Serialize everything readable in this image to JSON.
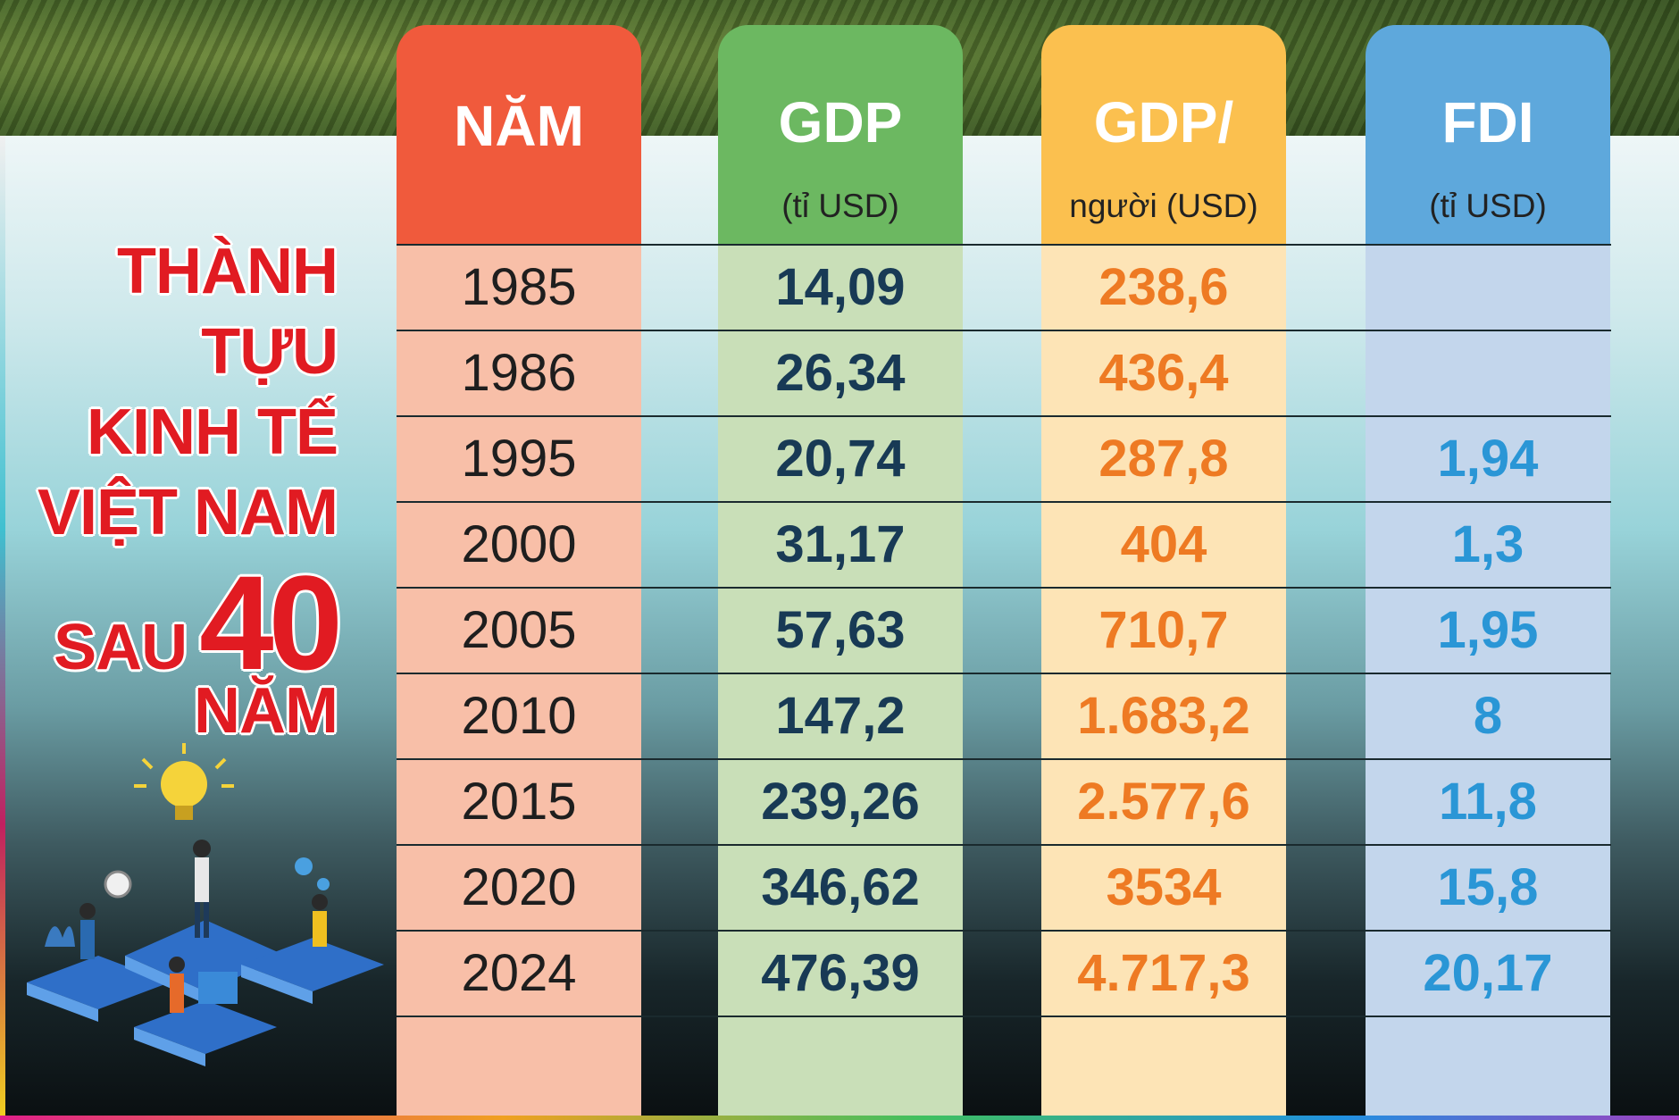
{
  "title": {
    "line1": "THÀNH",
    "line2": "TỰU",
    "line3": "KINH TẾ",
    "line4": "VIỆT NAM",
    "sau": "SAU",
    "number": "40",
    "line6": "NĂM"
  },
  "colors": {
    "year_header": "#f05a3c",
    "year_body": "#f8bfa8",
    "gdp_header": "#6cb861",
    "gdp_body": "#c9dfb8",
    "gdpp_header": "#fbc04f",
    "gdpp_body": "#fde4b6",
    "fdi_header": "#5ea8dc",
    "fdi_body": "#c3d6ec",
    "title_red": "#e11b22"
  },
  "chart_data": {
    "type": "table",
    "columns": [
      {
        "key": "year",
        "title": "NĂM",
        "subtitle": ""
      },
      {
        "key": "gdp",
        "title": "GDP",
        "subtitle": "(tỉ USD)"
      },
      {
        "key": "gdp_per_capita",
        "title": "GDP/",
        "subtitle": "người (USD)"
      },
      {
        "key": "fdi",
        "title": "FDI",
        "subtitle": "(tỉ USD)"
      }
    ],
    "rows": [
      {
        "year": "1985",
        "gdp": "14,09",
        "gdp_per_capita": "238,6",
        "fdi": ""
      },
      {
        "year": "1986",
        "gdp": "26,34",
        "gdp_per_capita": "436,4",
        "fdi": ""
      },
      {
        "year": "1995",
        "gdp": "20,74",
        "gdp_per_capita": "287,8",
        "fdi": "1,94"
      },
      {
        "year": "2000",
        "gdp": "31,17",
        "gdp_per_capita": "404",
        "fdi": "1,3"
      },
      {
        "year": "2005",
        "gdp": "57,63",
        "gdp_per_capita": "710,7",
        "fdi": "1,95"
      },
      {
        "year": "2010",
        "gdp": "147,2",
        "gdp_per_capita": "1.683,2",
        "fdi": "8"
      },
      {
        "year": "2015",
        "gdp": "239,26",
        "gdp_per_capita": "2.577,6",
        "fdi": "11,8"
      },
      {
        "year": "2020",
        "gdp": "346,62",
        "gdp_per_capita": "3534",
        "fdi": "15,8"
      },
      {
        "year": "2024",
        "gdp": "476,39",
        "gdp_per_capita": "4.717,3",
        "fdi": "20,17"
      }
    ]
  }
}
